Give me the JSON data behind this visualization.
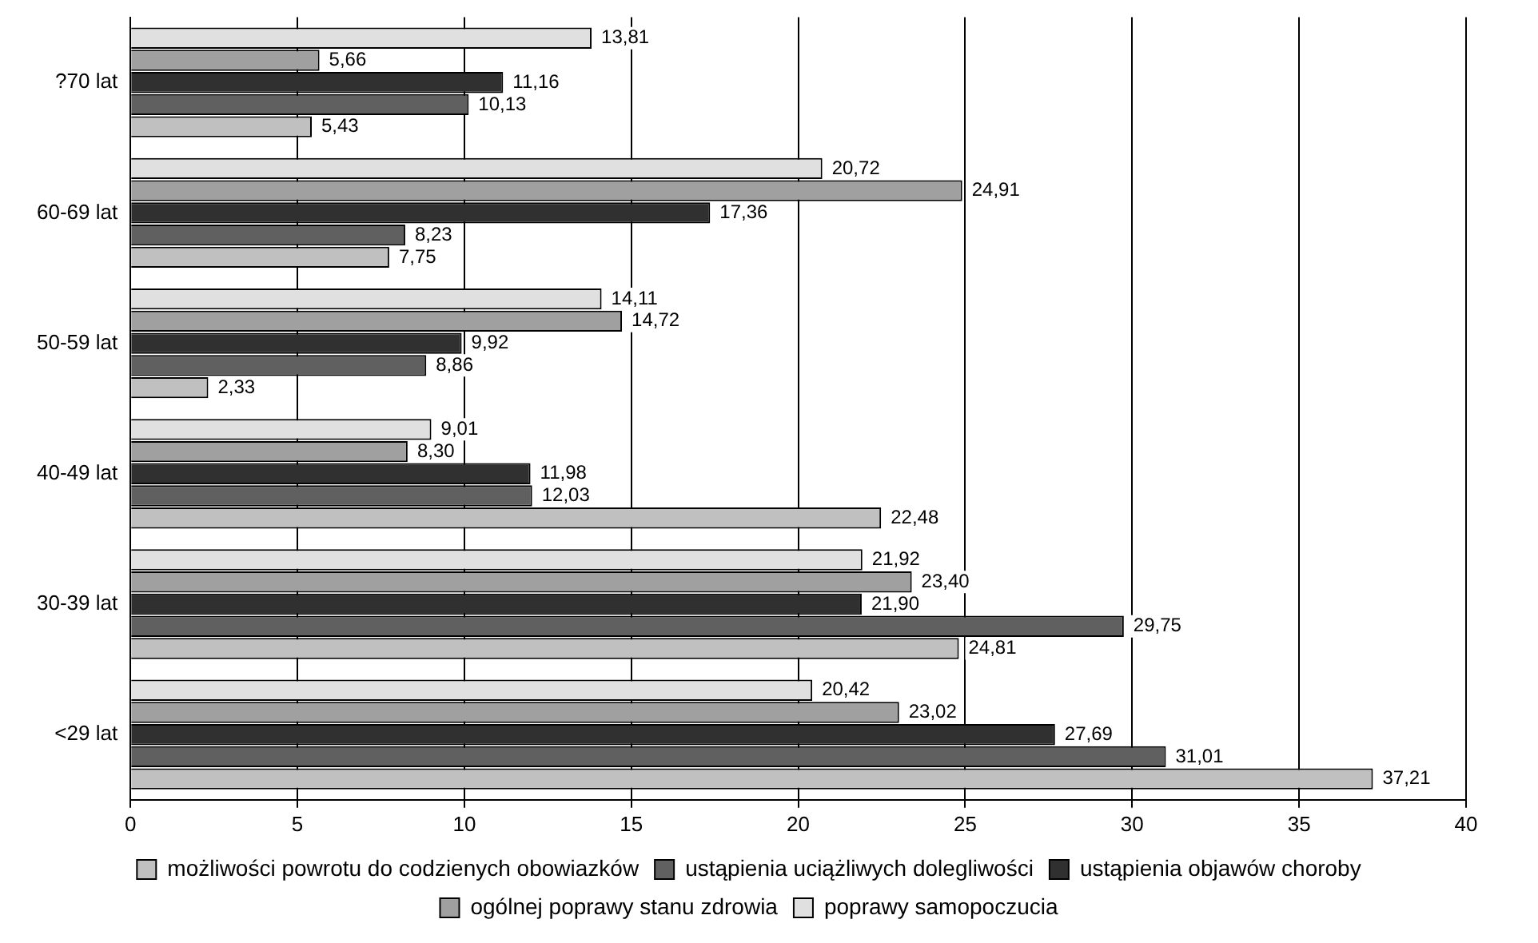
{
  "chart_data": {
    "type": "bar",
    "orientation": "horizontal",
    "categories": [
      "?70 lat",
      "60-69 lat",
      "50-59 lat",
      "40-49 lat",
      "30-39 lat",
      "<29 lat"
    ],
    "series": [
      {
        "name": "możliwości powrotu do codzienych obowiazków",
        "color": "#c0c0c0",
        "values": [
          5.43,
          7.75,
          2.33,
          22.48,
          24.81,
          37.21
        ],
        "value_labels": [
          "5,43",
          "7,75",
          "2,33",
          "22,48",
          "24,81",
          "37,21"
        ]
      },
      {
        "name": "ustąpienia uciążliwych dolegliwości",
        "color": "#606060",
        "values": [
          10.13,
          8.23,
          8.86,
          12.03,
          29.75,
          31.01
        ],
        "value_labels": [
          "10,13",
          "8,23",
          "8,86",
          "12,03",
          "29,75",
          "31,01"
        ]
      },
      {
        "name": "ustąpienia objawów choroby",
        "color": "#303030",
        "values": [
          11.16,
          17.36,
          9.92,
          11.98,
          21.9,
          27.69
        ],
        "value_labels": [
          "11,16",
          "17,36",
          "9,92",
          "11,98",
          "21,90",
          "27,69"
        ]
      },
      {
        "name": "ogólnej poprawy stanu zdrowia",
        "color": "#a0a0a0",
        "values": [
          5.66,
          24.91,
          14.72,
          8.3,
          23.4,
          23.02
        ],
        "value_labels": [
          "5,66",
          "24,91",
          "14,72",
          "8,30",
          "23,40",
          "23,02"
        ]
      },
      {
        "name": "poprawy samopoczucia",
        "color": "#e0e0e0",
        "values": [
          13.81,
          20.72,
          14.11,
          9.01,
          21.92,
          20.42
        ],
        "value_labels": [
          "13,81",
          "20,72",
          "14,11",
          "9,01",
          "21,92",
          "20,42"
        ]
      }
    ],
    "xlim": [
      0,
      40
    ],
    "xticks": [
      0,
      5,
      10,
      15,
      20,
      25,
      30,
      35,
      40
    ],
    "grid": "x",
    "legend": "bottom"
  }
}
